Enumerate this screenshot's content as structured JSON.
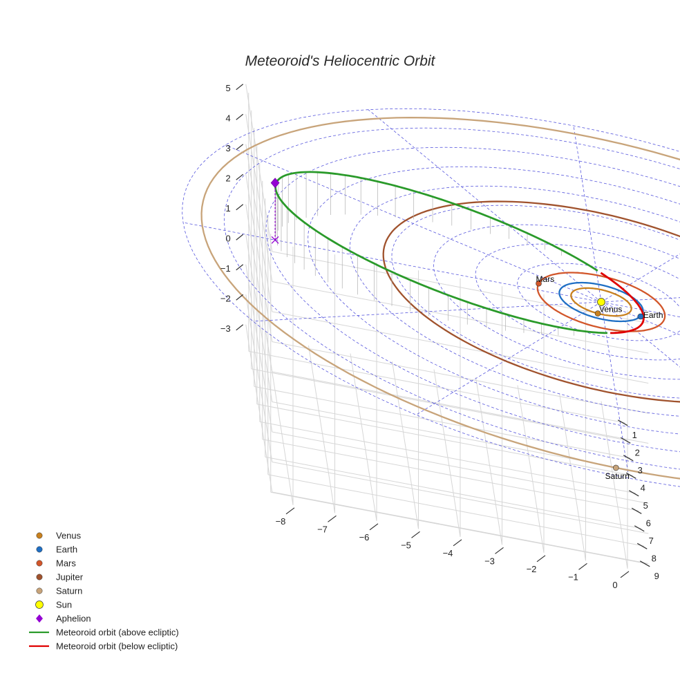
{
  "chart_data": {
    "type": "line",
    "title": "Meteoroid's Heliocentric Orbit",
    "x_ticks": [
      "−8",
      "−7",
      "−6",
      "−5",
      "−4",
      "−3",
      "−2",
      "−1",
      "0"
    ],
    "y_ticks": [
      "1",
      "2",
      "3",
      "4",
      "5",
      "6",
      "7",
      "8",
      "9"
    ],
    "z_ticks": [
      "5",
      "4",
      "3",
      "2",
      "1",
      "0",
      "−1",
      "−2",
      "−3"
    ],
    "xlim": [
      -8.5,
      0.5
    ],
    "ylim": [
      0,
      9.5
    ],
    "zlim": [
      -3.3,
      5.3
    ],
    "grid": true,
    "legend_position": "bottom-left",
    "planets": [
      {
        "name": "Venus",
        "orbit_radius_au": 0.72,
        "color": "#c8801e"
      },
      {
        "name": "Earth",
        "orbit_radius_au": 1.0,
        "color": "#1f6fc4"
      },
      {
        "name": "Mars",
        "orbit_radius_au": 1.52,
        "color": "#d2562a"
      },
      {
        "name": "Jupiter",
        "orbit_radius_au": 5.2,
        "color": "#a0522d"
      },
      {
        "name": "Saturn",
        "orbit_radius_au": 9.54,
        "color": "#c8a47a"
      }
    ],
    "sun": {
      "name": "Sun",
      "color": "#ffff00"
    },
    "aphelion": {
      "name": "Aphelion",
      "x": -7.8,
      "y": 0.0,
      "z": 1.9,
      "color": "#9400d3"
    },
    "series": [
      {
        "name": "Meteoroid orbit (above ecliptic)",
        "color": "#2a9a2a",
        "semi_major_axis_au": 4.4,
        "eccentricity": 0.77,
        "max_height_au": 1.9
      },
      {
        "name": "Meteoroid orbit (below ecliptic)",
        "color": "#e00000"
      }
    ],
    "legend": [
      "Venus",
      "Earth",
      "Mars",
      "Jupiter",
      "Saturn",
      "Sun",
      "Aphelion",
      "Meteoroid orbit (above ecliptic)",
      "Meteoroid orbit (below ecliptic)"
    ]
  }
}
